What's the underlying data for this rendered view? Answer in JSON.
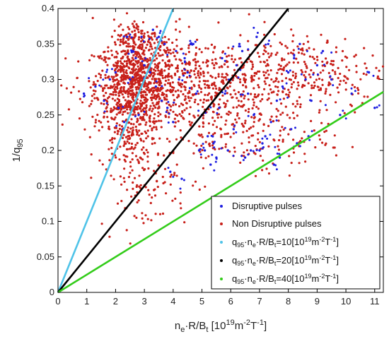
{
  "chart_data": {
    "type": "scatter",
    "title": "",
    "xlabel": {
      "base": "n",
      "sub1": "e",
      "mid": "·R/B",
      "sub2": "t",
      "unit": " [10",
      "sup1": "19",
      "unit2": "m",
      "sup2": "-2",
      "unit3": "T",
      "sup3": "-1",
      "close": "]"
    },
    "ylabel": {
      "base": "1/q",
      "sub": "95"
    },
    "xlim": [
      0,
      11.3
    ],
    "ylim": [
      0,
      0.4
    ],
    "xticks": [
      "0",
      "1",
      "2",
      "3",
      "4",
      "5",
      "6",
      "7",
      "8",
      "9",
      "10",
      "11"
    ],
    "yticks": [
      "0",
      "0.05",
      "0.1",
      "0.15",
      "0.2",
      "0.25",
      "0.3",
      "0.35",
      "0.4"
    ],
    "grid": false,
    "legend_position": "bottom-right",
    "series": [
      {
        "name": "Disruptive pulses",
        "color": "#1f1fe0",
        "kind": "points",
        "x": [
          0.9,
          1.3,
          1.6,
          1.8,
          2.0,
          2.1,
          2.3,
          2.5,
          2.7,
          2.8,
          3.0,
          3.2,
          3.4,
          3.6,
          3.8,
          4.0,
          4.2,
          4.4,
          4.6,
          4.8,
          5.0,
          5.2,
          5.4,
          5.6,
          5.8,
          6.0,
          6.2,
          6.4,
          6.6,
          6.8,
          7.0,
          7.2,
          7.4,
          7.6,
          7.8,
          8.0,
          8.2,
          8.4,
          8.6,
          8.8,
          9.0,
          9.2,
          9.5,
          9.8,
          10.2,
          10.8,
          11.0,
          3.5,
          4.1,
          4.5,
          5.1,
          5.5,
          6.1,
          6.5,
          7.1,
          7.5,
          8.1,
          3.9,
          4.3,
          4.9,
          5.3,
          5.9,
          6.3,
          6.9,
          7.3,
          2.9,
          3.3,
          3.7,
          6.7,
          7.7,
          8.3,
          8.7,
          5.7,
          4.7,
          2.4,
          2.6
        ],
        "y": [
          0.28,
          0.29,
          0.27,
          0.3,
          0.31,
          0.26,
          0.24,
          0.3,
          0.33,
          0.25,
          0.32,
          0.31,
          0.29,
          0.27,
          0.26,
          0.24,
          0.3,
          0.33,
          0.35,
          0.28,
          0.25,
          0.22,
          0.21,
          0.26,
          0.28,
          0.3,
          0.32,
          0.34,
          0.28,
          0.25,
          0.2,
          0.22,
          0.24,
          0.27,
          0.29,
          0.31,
          0.33,
          0.35,
          0.3,
          0.27,
          0.32,
          0.34,
          0.3,
          0.25,
          0.28,
          0.31,
          0.26,
          0.36,
          0.34,
          0.31,
          0.2,
          0.19,
          0.23,
          0.19,
          0.21,
          0.18,
          0.23,
          0.17,
          0.16,
          0.2,
          0.18,
          0.2,
          0.35,
          0.36,
          0.35,
          0.36,
          0.37,
          0.35,
          0.2,
          0.19,
          0.21,
          0.22,
          0.33,
          0.35,
          0.36,
          0.34
        ]
      },
      {
        "name": "Non Disruptive pulses",
        "color": "#c8201a",
        "kind": "points",
        "clusters": [
          {
            "cx": 2.7,
            "cy": 0.295,
            "sx": 0.7,
            "sy": 0.03,
            "n": 700
          },
          {
            "cx": 2.4,
            "cy": 0.23,
            "sx": 0.5,
            "sy": 0.03,
            "n": 180
          },
          {
            "cx": 5.0,
            "cy": 0.29,
            "sx": 1.9,
            "sy": 0.035,
            "n": 650
          },
          {
            "cx": 8.5,
            "cy": 0.31,
            "sx": 1.5,
            "sy": 0.025,
            "n": 220
          },
          {
            "cx": 2.9,
            "cy": 0.355,
            "sx": 0.5,
            "sy": 0.015,
            "n": 120
          },
          {
            "cx": 3.0,
            "cy": 0.15,
            "sx": 0.8,
            "sy": 0.03,
            "n": 90
          },
          {
            "cx": 6.5,
            "cy": 0.22,
            "sx": 1.5,
            "sy": 0.025,
            "n": 160
          }
        ]
      },
      {
        "name": "q95·ne·R/Bt=10[10^19m^-2T^-1]",
        "color": "#4fc3e8",
        "kind": "line",
        "x": [
          0,
          4.0
        ],
        "y": [
          0,
          0.4
        ]
      },
      {
        "name": "q95·ne·R/Bt=20[10^19m^-2T^-1]",
        "color": "#000000",
        "kind": "line",
        "x": [
          0,
          8.0
        ],
        "y": [
          0,
          0.4
        ]
      },
      {
        "name": "q95·ne·R/Bt=40[10^19m^-2T^-1]",
        "color": "#33cc1a",
        "kind": "line",
        "x": [
          0,
          11.3
        ],
        "y": [
          0,
          0.2825
        ]
      }
    ],
    "legend": [
      {
        "label": "Disruptive pulses",
        "marker": "dot",
        "color": "#1f1fe0"
      },
      {
        "label": "Non Disruptive pulses",
        "marker": "dot",
        "color": "#c8201a"
      },
      {
        "label": {
          "a": "q",
          "s1": "95",
          "b": "·n",
          "s2": "e",
          "c": "·R/B",
          "s3": "t",
          "d": "=10[10",
          "p1": "19",
          "e": "m",
          "p2": "-2",
          "f": "T",
          "p3": "-1",
          "g": "]"
        },
        "marker": "dot",
        "color": "#4fc3e8"
      },
      {
        "label": {
          "a": "q",
          "s1": "95",
          "b": "·n",
          "s2": "e",
          "c": "·R/B",
          "s3": "t",
          "d": "=20[10",
          "p1": "19",
          "e": "m",
          "p2": "-2",
          "f": "T",
          "p3": "-1",
          "g": "]"
        },
        "marker": "dot",
        "color": "#000000"
      },
      {
        "label": {
          "a": "q",
          "s1": "95",
          "b": "·n",
          "s2": "e",
          "c": "·R/B",
          "s3": "t",
          "d": "=40[10",
          "p1": "19",
          "e": "m",
          "p2": "-2",
          "f": "T",
          "p3": "-1",
          "g": "]"
        },
        "marker": "dot",
        "color": "#33cc1a"
      }
    ]
  }
}
